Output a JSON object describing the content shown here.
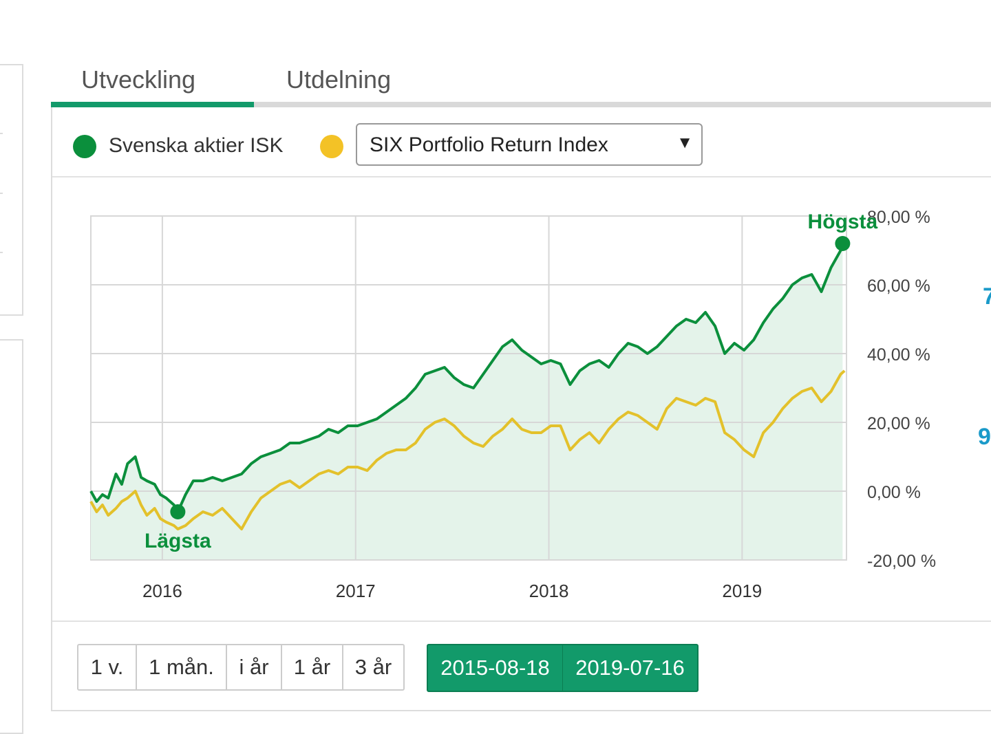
{
  "tabs": [
    {
      "label": "Utveckling",
      "active": true
    },
    {
      "label": "Utdelning",
      "active": false
    }
  ],
  "legend": {
    "primary": {
      "label": "Svenska aktier ISK",
      "color": "#0b8f3c"
    },
    "benchmark": {
      "color": "#f3c226"
    },
    "benchmark_select": {
      "selected": "SIX Portfolio Return Index",
      "arrow": "▼"
    }
  },
  "chart_data": {
    "type": "line",
    "x_range": [
      2015.63,
      2019.54
    ],
    "x_ticks": [
      {
        "value": 2016,
        "label": "2016"
      },
      {
        "value": 2017,
        "label": "2017"
      },
      {
        "value": 2018,
        "label": "2018"
      },
      {
        "value": 2019,
        "label": "2019"
      }
    ],
    "ylim": [
      -20,
      80
    ],
    "y_ticks": [
      {
        "value": 80,
        "label": "80,00 %"
      },
      {
        "value": 60,
        "label": "60,00 %"
      },
      {
        "value": 40,
        "label": "40,00 %"
      },
      {
        "value": 20,
        "label": "20,00 %"
      },
      {
        "value": 0,
        "label": "0,00 %"
      },
      {
        "value": -20,
        "label": "-20,00 %"
      }
    ],
    "grid": true,
    "series": [
      {
        "name": "Svenska aktier ISK",
        "color": "#0b8f3c",
        "fill": "#e4f3ea",
        "points": [
          [
            2015.63,
            0
          ],
          [
            2015.66,
            -3
          ],
          [
            2015.69,
            -1
          ],
          [
            2015.72,
            -2
          ],
          [
            2015.76,
            5
          ],
          [
            2015.79,
            2
          ],
          [
            2015.82,
            8
          ],
          [
            2015.86,
            10
          ],
          [
            2015.89,
            4
          ],
          [
            2015.92,
            3
          ],
          [
            2015.96,
            2
          ],
          [
            2015.99,
            -1
          ],
          [
            2016.02,
            -2
          ],
          [
            2016.06,
            -4
          ],
          [
            2016.08,
            -6
          ],
          [
            2016.12,
            -1
          ],
          [
            2016.16,
            3
          ],
          [
            2016.21,
            3
          ],
          [
            2016.26,
            4
          ],
          [
            2016.31,
            3
          ],
          [
            2016.36,
            4
          ],
          [
            2016.41,
            5
          ],
          [
            2016.46,
            8
          ],
          [
            2016.51,
            10
          ],
          [
            2016.56,
            11
          ],
          [
            2016.61,
            12
          ],
          [
            2016.66,
            14
          ],
          [
            2016.71,
            14
          ],
          [
            2016.76,
            15
          ],
          [
            2016.81,
            16
          ],
          [
            2016.86,
            18
          ],
          [
            2016.91,
            17
          ],
          [
            2016.96,
            19
          ],
          [
            2017.01,
            19
          ],
          [
            2017.06,
            20
          ],
          [
            2017.11,
            21
          ],
          [
            2017.16,
            23
          ],
          [
            2017.21,
            25
          ],
          [
            2017.26,
            27
          ],
          [
            2017.31,
            30
          ],
          [
            2017.36,
            34
          ],
          [
            2017.41,
            35
          ],
          [
            2017.46,
            36
          ],
          [
            2017.51,
            33
          ],
          [
            2017.56,
            31
          ],
          [
            2017.61,
            30
          ],
          [
            2017.66,
            34
          ],
          [
            2017.71,
            38
          ],
          [
            2017.76,
            42
          ],
          [
            2017.81,
            44
          ],
          [
            2017.86,
            41
          ],
          [
            2017.91,
            39
          ],
          [
            2017.96,
            37
          ],
          [
            2018.01,
            38
          ],
          [
            2018.06,
            37
          ],
          [
            2018.11,
            31
          ],
          [
            2018.16,
            35
          ],
          [
            2018.21,
            37
          ],
          [
            2018.26,
            38
          ],
          [
            2018.31,
            36
          ],
          [
            2018.36,
            40
          ],
          [
            2018.41,
            43
          ],
          [
            2018.46,
            42
          ],
          [
            2018.51,
            40
          ],
          [
            2018.56,
            42
          ],
          [
            2018.61,
            45
          ],
          [
            2018.66,
            48
          ],
          [
            2018.71,
            50
          ],
          [
            2018.76,
            49
          ],
          [
            2018.81,
            52
          ],
          [
            2018.86,
            48
          ],
          [
            2018.91,
            40
          ],
          [
            2018.96,
            43
          ],
          [
            2019.01,
            41
          ],
          [
            2019.06,
            44
          ],
          [
            2019.11,
            49
          ],
          [
            2019.16,
            53
          ],
          [
            2019.21,
            56
          ],
          [
            2019.26,
            60
          ],
          [
            2019.31,
            62
          ],
          [
            2019.36,
            63
          ],
          [
            2019.41,
            58
          ],
          [
            2019.46,
            65
          ],
          [
            2019.51,
            70
          ],
          [
            2019.52,
            72
          ]
        ]
      },
      {
        "name": "SIX Portfolio Return Index",
        "color": "#e3c12b",
        "fill": null,
        "points": [
          [
            2015.63,
            -3
          ],
          [
            2015.66,
            -6
          ],
          [
            2015.69,
            -4
          ],
          [
            2015.72,
            -7
          ],
          [
            2015.76,
            -5
          ],
          [
            2015.79,
            -3
          ],
          [
            2015.82,
            -2
          ],
          [
            2015.86,
            0
          ],
          [
            2015.89,
            -4
          ],
          [
            2015.92,
            -7
          ],
          [
            2015.96,
            -5
          ],
          [
            2015.99,
            -8
          ],
          [
            2016.02,
            -9
          ],
          [
            2016.06,
            -10
          ],
          [
            2016.08,
            -11
          ],
          [
            2016.12,
            -10
          ],
          [
            2016.16,
            -8
          ],
          [
            2016.21,
            -6
          ],
          [
            2016.26,
            -7
          ],
          [
            2016.31,
            -5
          ],
          [
            2016.36,
            -8
          ],
          [
            2016.41,
            -11
          ],
          [
            2016.46,
            -6
          ],
          [
            2016.51,
            -2
          ],
          [
            2016.56,
            0
          ],
          [
            2016.61,
            2
          ],
          [
            2016.66,
            3
          ],
          [
            2016.71,
            1
          ],
          [
            2016.76,
            3
          ],
          [
            2016.81,
            5
          ],
          [
            2016.86,
            6
          ],
          [
            2016.91,
            5
          ],
          [
            2016.96,
            7
          ],
          [
            2017.01,
            7
          ],
          [
            2017.06,
            6
          ],
          [
            2017.11,
            9
          ],
          [
            2017.16,
            11
          ],
          [
            2017.21,
            12
          ],
          [
            2017.26,
            12
          ],
          [
            2017.31,
            14
          ],
          [
            2017.36,
            18
          ],
          [
            2017.41,
            20
          ],
          [
            2017.46,
            21
          ],
          [
            2017.51,
            19
          ],
          [
            2017.56,
            16
          ],
          [
            2017.61,
            14
          ],
          [
            2017.66,
            13
          ],
          [
            2017.71,
            16
          ],
          [
            2017.76,
            18
          ],
          [
            2017.81,
            21
          ],
          [
            2017.86,
            18
          ],
          [
            2017.91,
            17
          ],
          [
            2017.96,
            17
          ],
          [
            2018.01,
            19
          ],
          [
            2018.06,
            19
          ],
          [
            2018.11,
            12
          ],
          [
            2018.16,
            15
          ],
          [
            2018.21,
            17
          ],
          [
            2018.26,
            14
          ],
          [
            2018.31,
            18
          ],
          [
            2018.36,
            21
          ],
          [
            2018.41,
            23
          ],
          [
            2018.46,
            22
          ],
          [
            2018.51,
            20
          ],
          [
            2018.56,
            18
          ],
          [
            2018.61,
            24
          ],
          [
            2018.66,
            27
          ],
          [
            2018.71,
            26
          ],
          [
            2018.76,
            25
          ],
          [
            2018.81,
            27
          ],
          [
            2018.86,
            26
          ],
          [
            2018.91,
            17
          ],
          [
            2018.96,
            15
          ],
          [
            2019.01,
            12
          ],
          [
            2019.06,
            10
          ],
          [
            2019.11,
            17
          ],
          [
            2019.16,
            20
          ],
          [
            2019.21,
            24
          ],
          [
            2019.26,
            27
          ],
          [
            2019.31,
            29
          ],
          [
            2019.36,
            30
          ],
          [
            2019.41,
            26
          ],
          [
            2019.46,
            29
          ],
          [
            2019.51,
            34
          ],
          [
            2019.53,
            35
          ]
        ]
      }
    ],
    "annotations": [
      {
        "label": "Högsta",
        "x": 2019.52,
        "y": 72,
        "position": "above"
      },
      {
        "label": "Lägsta",
        "x": 2016.08,
        "y": -6,
        "position": "below"
      }
    ]
  },
  "range_buttons": [
    "1 v.",
    "1 mån.",
    "i år",
    "1 år",
    "3 år"
  ],
  "date_range": {
    "start": "2015-08-18",
    "end": "2019-07-16"
  },
  "edge_values": [
    "7",
    "9"
  ]
}
